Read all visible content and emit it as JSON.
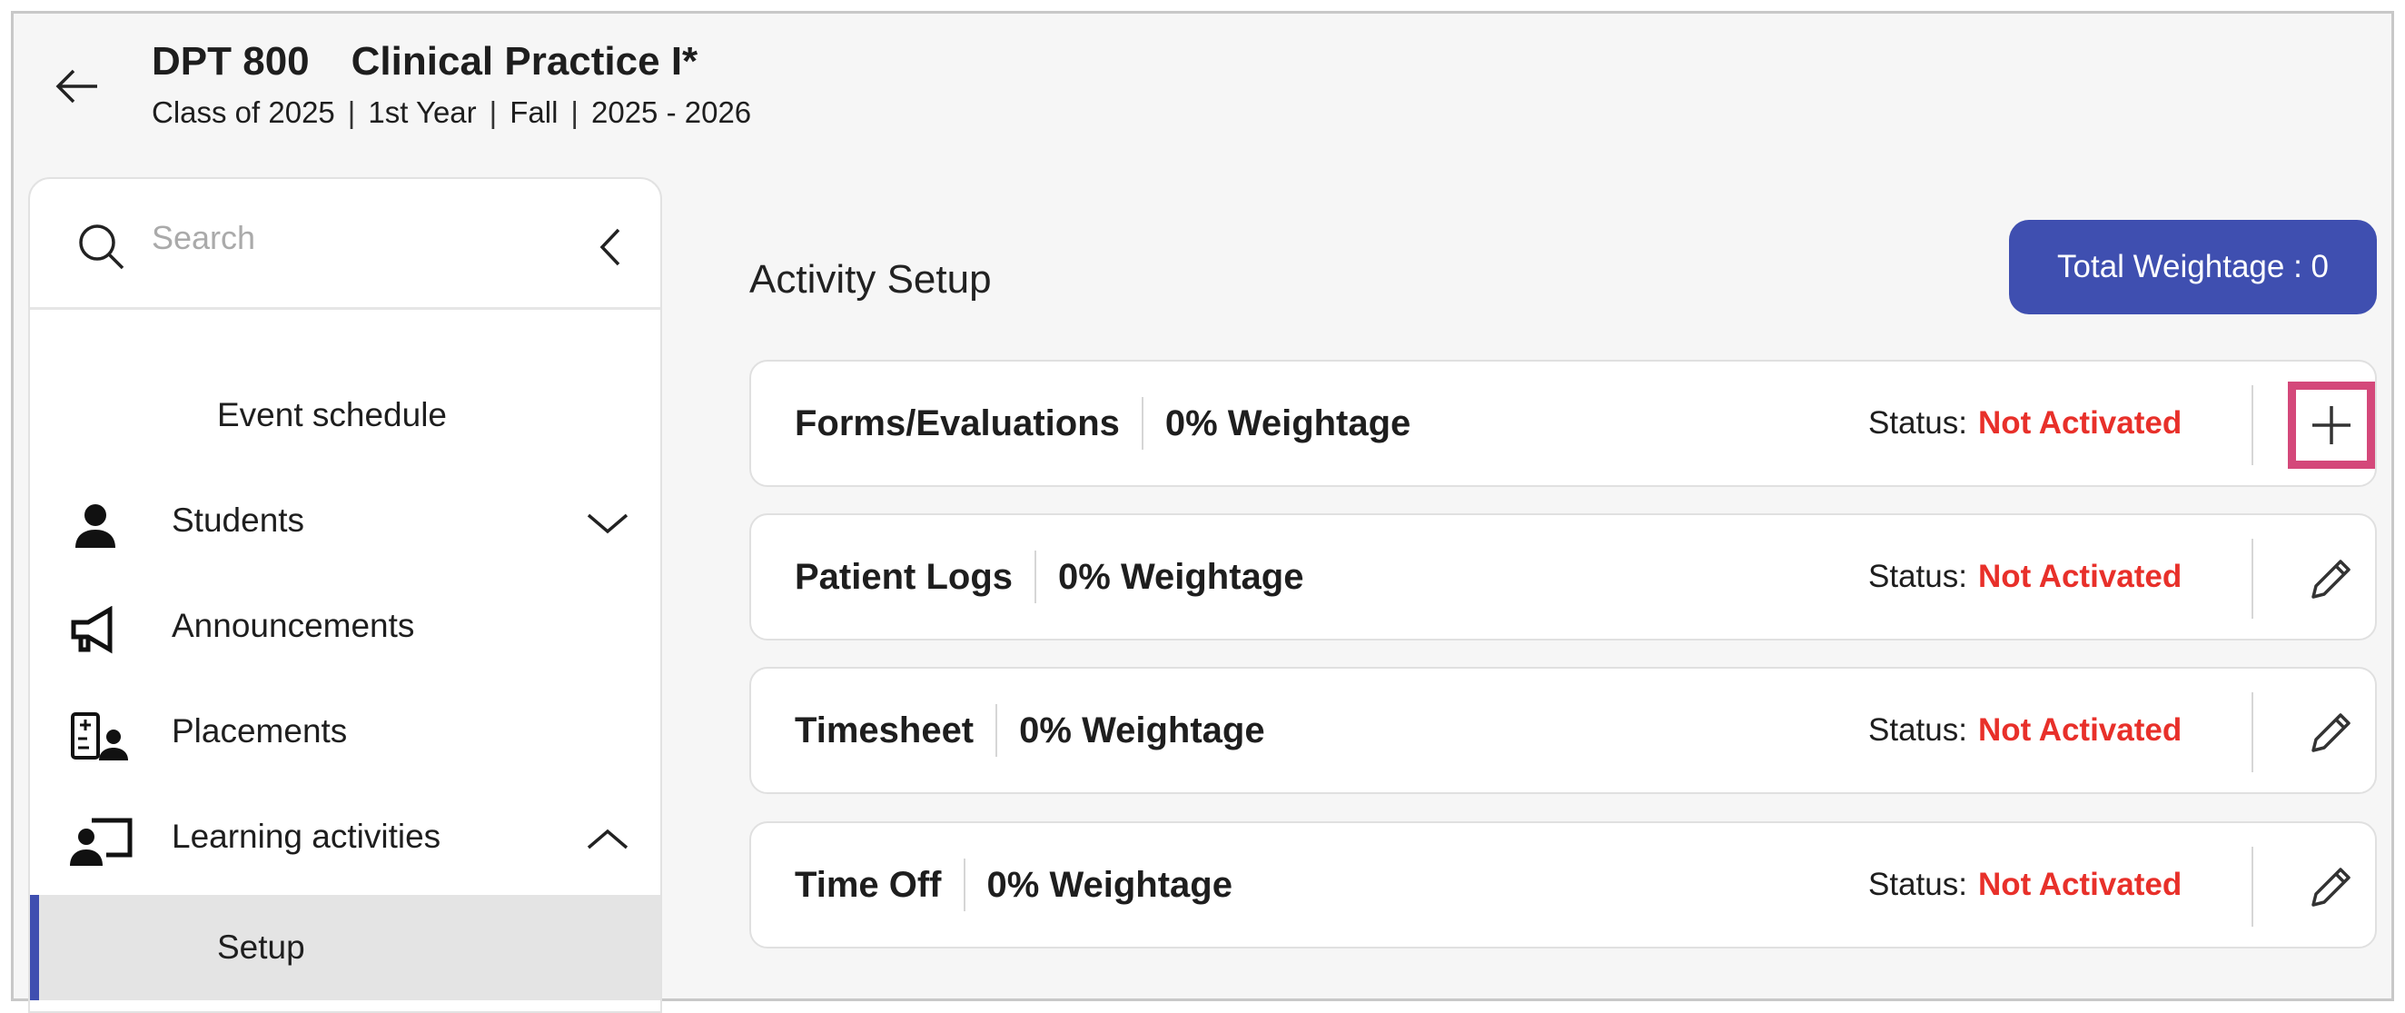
{
  "header": {
    "code": "DPT 800",
    "title": "Clinical Practice I*",
    "meta": [
      "Class of 2025",
      "1st Year",
      "Fall",
      "2025 - 2026"
    ]
  },
  "sidebar": {
    "search_placeholder": "Search",
    "items": [
      {
        "label": "Event schedule",
        "icon": ""
      },
      {
        "label": "Students",
        "icon": "person-icon",
        "chevron": "down"
      },
      {
        "label": "Announcements",
        "icon": "megaphone-icon"
      },
      {
        "label": "Placements",
        "icon": "placement-icon"
      },
      {
        "label": "Learning activities",
        "icon": "presentation-icon",
        "chevron": "up"
      },
      {
        "label": "Setup",
        "active": true
      }
    ]
  },
  "main": {
    "title": "Activity Setup",
    "total_weightage": "Total Weightage : 0",
    "status_label": "Status:",
    "activities": [
      {
        "name": "Forms/Evaluations",
        "weightage": "0% Weightage",
        "status": "Not Activated",
        "action": "plus-icon"
      },
      {
        "name": "Patient Logs",
        "weightage": "0% Weightage",
        "status": "Not Activated",
        "action": "pencil-icon"
      },
      {
        "name": "Timesheet",
        "weightage": "0% Weightage",
        "status": "Not Activated",
        "action": "pencil-icon"
      },
      {
        "name": "Time Off",
        "weightage": "0% Weightage",
        "status": "Not Activated",
        "action": "pencil-icon"
      }
    ]
  },
  "colors": {
    "accent": "#3f4fb0",
    "status_error": "#e8302a",
    "highlight": "#d4487a"
  }
}
